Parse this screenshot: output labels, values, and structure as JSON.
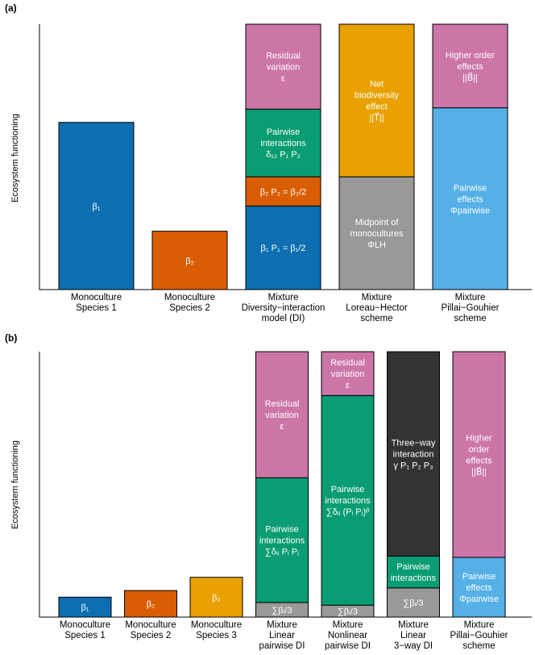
{
  "colors": {
    "blue": "#0d6eb0",
    "orange": "#d95d05",
    "yellow": "#e8a100",
    "pink": "#cc76a8",
    "green": "#0a9c72",
    "gray": "#999999",
    "dark": "#333333",
    "lightblue": "#54b0e7"
  },
  "panel_a": {
    "label": "(a)",
    "ylabel": "Ecosystem functioning",
    "categories": [
      [
        "Monoculture",
        "Species 1"
      ],
      [
        "Monoculture",
        "Species 2"
      ],
      [
        "Mixture",
        "Diversity−interaction",
        "model (DI)"
      ],
      [
        "Mixture",
        "Loreau−Hector",
        "scheme"
      ],
      [
        "Mixture",
        "Pillai−Gouhier",
        "scheme"
      ]
    ],
    "bars": [
      {
        "segments": [
          {
            "color": "blue",
            "value": 0.63,
            "lines": [
              "β₁"
            ]
          }
        ]
      },
      {
        "segments": [
          {
            "color": "orange",
            "value": 0.22,
            "lines": [
              "β₂"
            ]
          }
        ]
      },
      {
        "segments": [
          {
            "color": "blue",
            "value": 0.315,
            "lines": [
              "β₁ P₁ = β₁/2"
            ]
          },
          {
            "color": "orange",
            "value": 0.11,
            "lines": [
              "β₂ P₂ = β₂/2"
            ]
          },
          {
            "color": "green",
            "value": 0.255,
            "lines": [
              "Pairwise",
              "interactions",
              "δ₁₂ P₁ P₂"
            ]
          },
          {
            "color": "pink",
            "value": 0.32,
            "lines": [
              "Residual",
              "variation",
              "ε"
            ]
          }
        ]
      },
      {
        "segments": [
          {
            "color": "gray",
            "value": 0.425,
            "lines": [
              "Midpoint of",
              "monocultures",
              "ΦLH"
            ]
          },
          {
            "color": "yellow",
            "value": 0.575,
            "lines": [
              "Net",
              "biodiversity",
              "effect",
              "||T⃗||"
            ]
          }
        ]
      },
      {
        "segments": [
          {
            "color": "lightblue",
            "value": 0.685,
            "lines": [
              "Pairwise",
              "effects",
              "Φpairwise"
            ]
          },
          {
            "color": "pink",
            "value": 0.315,
            "lines": [
              "Higher order",
              "effects",
              "||B⃗||"
            ]
          }
        ]
      }
    ]
  },
  "panel_b": {
    "label": "(b)",
    "ylabel": "Ecosystem functioning",
    "categories": [
      [
        "Monoculture",
        "Species 1"
      ],
      [
        "Monoculture",
        "Species 2"
      ],
      [
        "Monoculture",
        "Species 3"
      ],
      [
        "Mixture",
        "Linear",
        "pairwise DI"
      ],
      [
        "Mixture",
        "Nonlinear",
        "pairwise DI"
      ],
      [
        "Mixture",
        "Linear",
        "3−way DI"
      ],
      [
        "Mixture",
        "Pillai−Gouhier",
        "scheme"
      ]
    ],
    "bars": [
      {
        "segments": [
          {
            "color": "blue",
            "value": 0.075,
            "lines": [
              "β₁"
            ]
          }
        ]
      },
      {
        "segments": [
          {
            "color": "orange",
            "value": 0.1,
            "lines": [
              "β₂"
            ]
          }
        ]
      },
      {
        "segments": [
          {
            "color": "yellow",
            "value": 0.15,
            "lines": [
              "β₃"
            ]
          }
        ]
      },
      {
        "segments": [
          {
            "color": "gray",
            "value": 0.055,
            "lines": [
              "∑βᵢ/3"
            ]
          },
          {
            "color": "green",
            "value": 0.47,
            "lines": [
              "Pairwise",
              "interactions",
              "∑δᵢⱼ Pᵢ Pⱼ"
            ]
          },
          {
            "color": "pink",
            "value": 0.475,
            "lines": [
              "Residual",
              "variation",
              "ε"
            ]
          }
        ]
      },
      {
        "segments": [
          {
            "color": "gray",
            "value": 0.045,
            "lines": [
              "∑βᵢ/3"
            ]
          },
          {
            "color": "green",
            "value": 0.79,
            "lines": [
              "Pairwise",
              "interactions",
              "∑δᵢⱼ (Pᵢ Pⱼ)ᶿ"
            ]
          },
          {
            "color": "pink",
            "value": 0.165,
            "lines": [
              "Residual",
              "variation",
              "ε"
            ]
          }
        ]
      },
      {
        "segments": [
          {
            "color": "gray",
            "value": 0.11,
            "lines": [
              "∑βᵢ/3"
            ]
          },
          {
            "color": "green",
            "value": 0.12,
            "lines": [
              "Pairwise",
              "interactions"
            ]
          },
          {
            "color": "dark",
            "value": 0.77,
            "lines": [
              "Three−way",
              "interaction",
              "γ P₁ P₂ P₃"
            ]
          }
        ]
      },
      {
        "segments": [
          {
            "color": "lightblue",
            "value": 0.225,
            "lines": [
              "Pairwise",
              "effects",
              "Φpairwise"
            ]
          },
          {
            "color": "pink",
            "value": 0.775,
            "lines": [
              "Higher",
              "order",
              "effects",
              "||B⃗||"
            ]
          }
        ]
      }
    ]
  }
}
